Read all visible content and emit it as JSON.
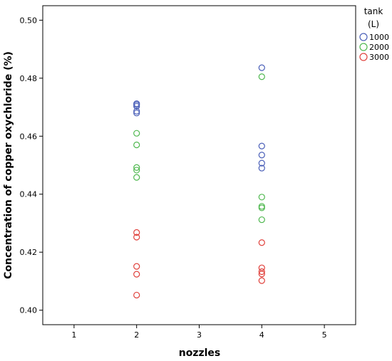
{
  "chart_data": {
    "type": "scatter",
    "xlabel": "nozzles",
    "ylabel": "Concentration of copper oxychloride (%)",
    "xlim": [
      0.5,
      5.5
    ],
    "ylim": [
      0.395,
      0.505
    ],
    "x_ticks": [
      1,
      2,
      3,
      4,
      5
    ],
    "y_ticks": [
      0.4,
      0.42,
      0.44,
      0.46,
      0.48,
      0.5
    ],
    "x_tick_labels": [
      "1",
      "2",
      "3",
      "4",
      "5"
    ],
    "y_tick_labels": [
      "0.40",
      "0.42",
      "0.44",
      "0.46",
      "0.48",
      "0.50"
    ],
    "grid": false,
    "legend": {
      "title_line1": "tank",
      "title_line2": "(L)",
      "placement": "right"
    },
    "series": [
      {
        "name": "1000",
        "color": "#4a5fb8",
        "points": [
          {
            "x": 2,
            "y": 0.4712
          },
          {
            "x": 2,
            "y": 0.4708
          },
          {
            "x": 2,
            "y": 0.4703
          },
          {
            "x": 2,
            "y": 0.4686
          },
          {
            "x": 2,
            "y": 0.468
          },
          {
            "x": 4,
            "y": 0.4836
          },
          {
            "x": 4,
            "y": 0.4566
          },
          {
            "x": 4,
            "y": 0.4535
          },
          {
            "x": 4,
            "y": 0.4507
          },
          {
            "x": 4,
            "y": 0.449
          }
        ]
      },
      {
        "name": "2000",
        "color": "#4fb84f",
        "points": [
          {
            "x": 2,
            "y": 0.461
          },
          {
            "x": 2,
            "y": 0.457
          },
          {
            "x": 2,
            "y": 0.4492
          },
          {
            "x": 2,
            "y": 0.4483
          },
          {
            "x": 2,
            "y": 0.4458
          },
          {
            "x": 4,
            "y": 0.4805
          },
          {
            "x": 4,
            "y": 0.439
          },
          {
            "x": 4,
            "y": 0.4358
          },
          {
            "x": 4,
            "y": 0.4353
          },
          {
            "x": 4,
            "y": 0.4312
          }
        ]
      },
      {
        "name": "3000",
        "color": "#e0413c",
        "points": [
          {
            "x": 2,
            "y": 0.4268
          },
          {
            "x": 2,
            "y": 0.4252
          },
          {
            "x": 2,
            "y": 0.4151
          },
          {
            "x": 2,
            "y": 0.4124
          },
          {
            "x": 2,
            "y": 0.4052
          },
          {
            "x": 4,
            "y": 0.4233
          },
          {
            "x": 4,
            "y": 0.4146
          },
          {
            "x": 4,
            "y": 0.4133
          },
          {
            "x": 4,
            "y": 0.4125
          },
          {
            "x": 4,
            "y": 0.4102
          }
        ]
      }
    ]
  }
}
